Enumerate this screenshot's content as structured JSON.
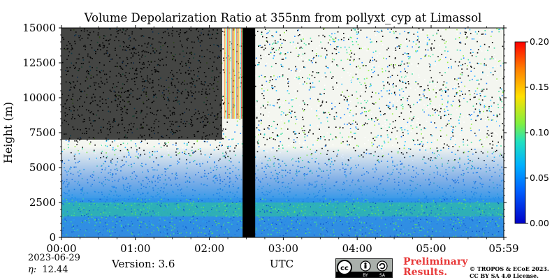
{
  "chart_data": {
    "type": "heatmap",
    "title": "Volume Depolarization Ratio at 355nm from pollyxt_cyp at Limassol",
    "xlabel": "UTC",
    "ylabel": "Height (m)",
    "x_ticks": [
      "00:00",
      "01:00",
      "02:00",
      "03:00",
      "04:00",
      "05:00",
      "05:59"
    ],
    "x_range_hours": [
      0,
      5.983
    ],
    "y_ticks": [
      0,
      2500,
      5000,
      7500,
      10000,
      12500,
      15000
    ],
    "ylim": [
      0,
      15000
    ],
    "colorbar": {
      "ticks": [
        "0.00",
        "0.05",
        "0.10",
        "0.15",
        "0.20"
      ],
      "range": [
        0.0,
        0.2
      ],
      "colors": [
        "#0000c8",
        "#0060ff",
        "#00c8ff",
        "#20e0a0",
        "#80f040",
        "#ffe000",
        "#ff8000",
        "#ff0000"
      ]
    },
    "gaps": [
      {
        "from_hour": 2.45,
        "to_hour": 2.62,
        "fill": "#000000"
      }
    ],
    "layers": [
      {
        "name": "boundary layer",
        "height_range_m": [
          0,
          2800
        ],
        "approx_value": 0.03
      },
      {
        "name": "elevated aerosol",
        "height_range_m": [
          1500,
          2500
        ],
        "approx_value": 0.06
      },
      {
        "name": "free troposphere noise",
        "height_range_m": [
          3000,
          15000
        ],
        "approx_value": "noisy"
      }
    ]
  },
  "footer": {
    "date": "2023-06-29",
    "eta_label": "η:",
    "eta_value": "12.44",
    "version": "Version: 3.6",
    "license_badge": "cc-by-sa-icon",
    "preliminary": "Preliminary\nResults.",
    "copyright_line1": "© TROPOS & ECoE 2023.",
    "copyright_line2": "CC BY SA 4.0 License."
  }
}
